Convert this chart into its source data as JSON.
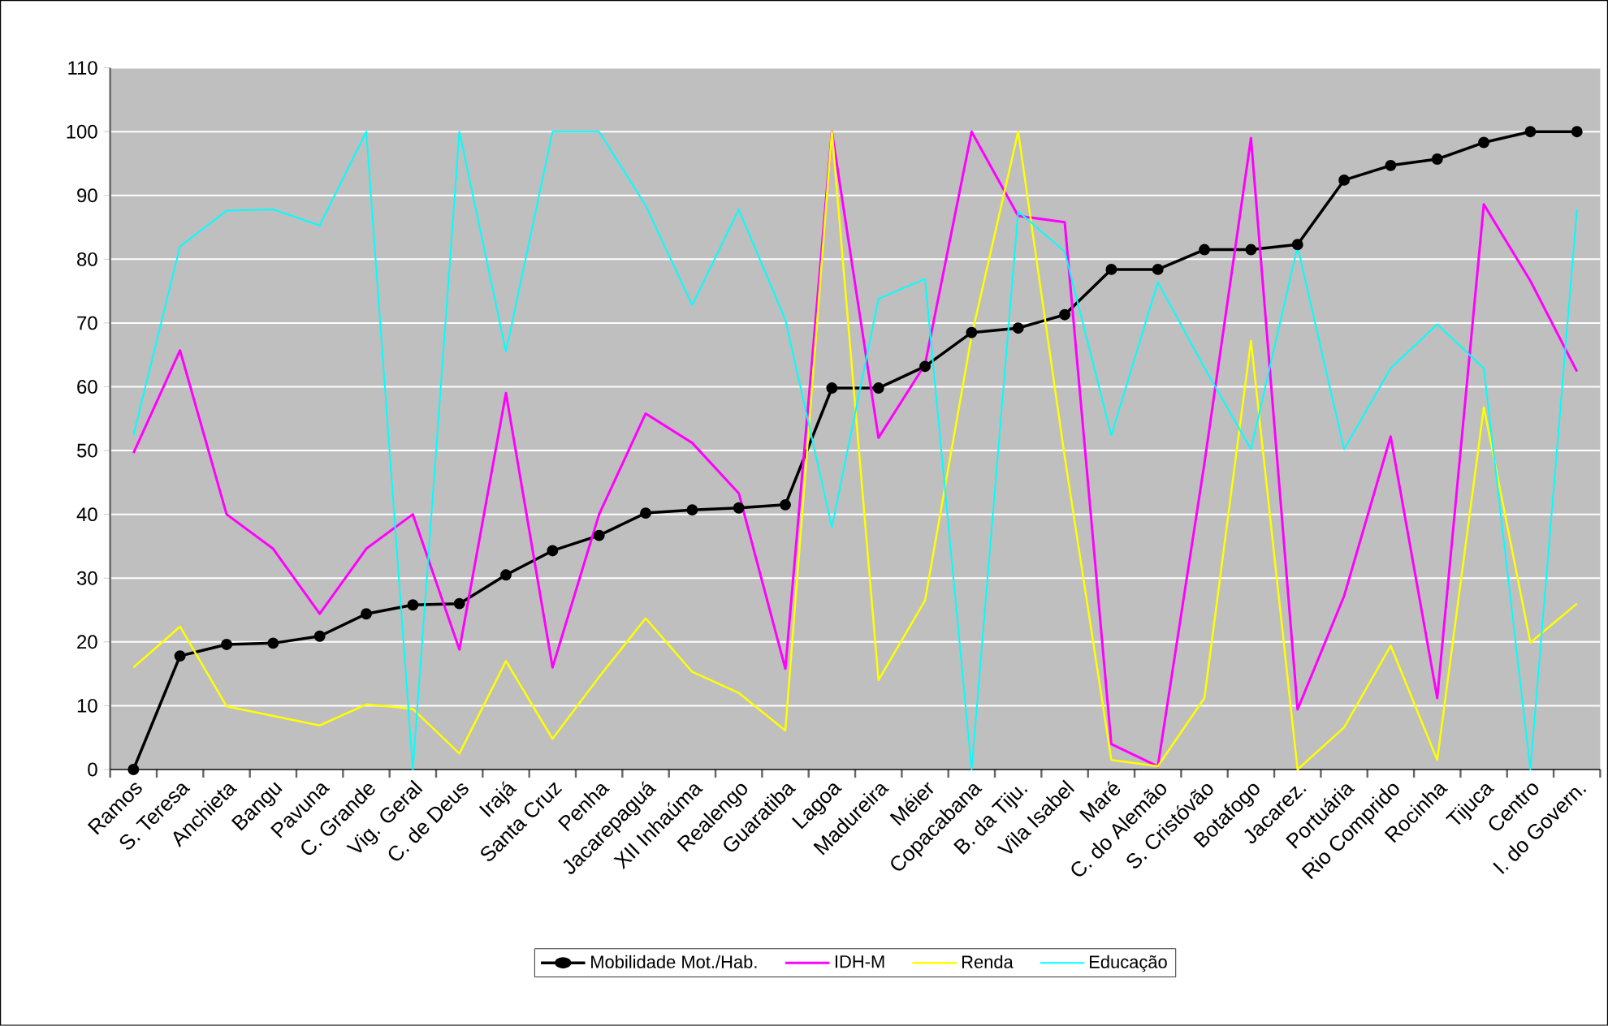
{
  "chart_data": {
    "type": "line",
    "categories": [
      "Ramos",
      "S. Teresa",
      "Anchieta",
      "Bangu",
      "Pavuna",
      "C. Grande",
      "Vig. Geral",
      "C. de Deus",
      "Irajá",
      "Santa Cruz",
      "Penha",
      "Jacarepaguá",
      "XII Inhaúma",
      "Realengo",
      "Guaratiba",
      "Lagoa",
      "Madureira",
      "Méier",
      "Copacabana",
      "B. da Tiju.",
      "Vila Isabel",
      "Maré",
      "C. do Alemão",
      "S. Cristóvão",
      "Botafogo",
      "Jacarez.",
      "Portuária",
      "Rio Comprido",
      "Rocinha",
      "Tijuca",
      "Centro",
      "I. do Govern."
    ],
    "series": [
      {
        "name": "Mobilidade Mot./Hab.",
        "color": "#000000",
        "marker": "circle",
        "values": [
          0,
          17.8,
          19.6,
          19.8,
          20.9,
          24.4,
          25.8,
          26,
          30.5,
          34.3,
          36.7,
          40.2,
          40.7,
          41,
          41.5,
          59.8,
          59.8,
          63.2,
          68.5,
          69.2,
          71.3,
          78.4,
          78.4,
          81.5,
          81.5,
          82.3,
          92.4,
          94.7,
          95.7,
          98.3,
          100,
          100
        ]
      },
      {
        "name": "IDH-M",
        "color": "#ff00ff",
        "values": [
          49.6,
          65.7,
          40,
          34.6,
          24.4,
          34.6,
          40,
          18.8,
          59,
          16,
          40,
          55.8,
          51.2,
          43.3,
          15.8,
          100,
          52,
          63.5,
          100,
          86.8,
          85.8,
          4,
          0.5,
          48,
          99,
          9.4,
          27.2,
          52.2,
          11.2,
          88.6,
          76.6,
          62.4
        ]
      },
      {
        "name": "Renda",
        "color": "#ffff00",
        "values": [
          16,
          22.4,
          9.9,
          8.4,
          6.9,
          10.2,
          9.5,
          2.5,
          17,
          4.8,
          14.5,
          23.7,
          15.3,
          12,
          6.1,
          100,
          14,
          26.5,
          68,
          100,
          49,
          1.5,
          0.5,
          11.2,
          67.2,
          0,
          6.6,
          19.4,
          1.5,
          56.8,
          19.9,
          26
        ]
      },
      {
        "name": "Educação",
        "color": "#00ffff",
        "values": [
          52.4,
          82,
          87.6,
          87.8,
          85.3,
          100,
          0,
          100,
          65.5,
          100,
          100,
          88.4,
          72.8,
          87.8,
          70.5,
          38,
          73.8,
          76.9,
          0,
          87.5,
          81.2,
          52.4,
          76.4,
          63,
          50.2,
          82,
          50.2,
          62.9,
          69.8,
          62.9,
          0,
          87.8
        ]
      }
    ],
    "ylim": [
      0,
      110
    ],
    "yticks": [
      0,
      10,
      20,
      30,
      40,
      50,
      60,
      70,
      80,
      90,
      100,
      110
    ],
    "grid": "y",
    "legend": "bottom",
    "marker": "none",
    "line_style": "solid"
  }
}
